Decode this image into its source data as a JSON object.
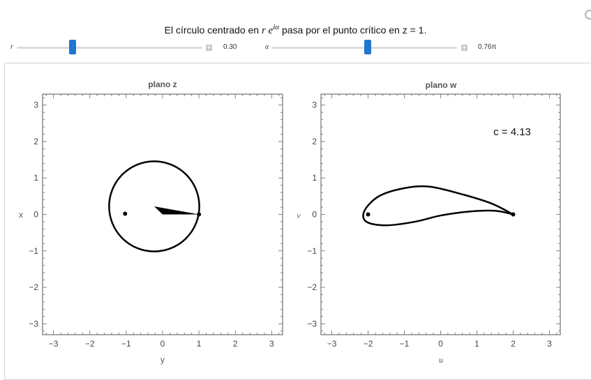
{
  "caption": {
    "prefix": "El círculo centrado en",
    "expr_base": "r e",
    "expr_exp": "iα",
    "suffix": "pasa por el punto crítico en z = 1."
  },
  "controls": {
    "r": {
      "label": "r",
      "value_text": "0.30",
      "fraction": 0.3
    },
    "alpha": {
      "label": "α",
      "value_text": "0.76π",
      "fraction": 0.52
    }
  },
  "plots": {
    "z": {
      "title": "plano z",
      "xlabel": "y",
      "ylabel": "x",
      "xlim": [
        -3.3,
        3.3
      ],
      "ylim": [
        -3.3,
        3.3
      ],
      "ticks": [
        -3,
        -2,
        -1,
        0,
        1,
        2,
        3
      ],
      "tick_labels": [
        "−3",
        "−2",
        "−1",
        "0",
        "1",
        "2",
        "3"
      ]
    },
    "w": {
      "title": "plano w",
      "xlabel": "u",
      "ylabel": "v",
      "xlim": [
        -3.3,
        3.3
      ],
      "ylim": [
        -3.3,
        3.3
      ],
      "ticks": [
        -3,
        -2,
        -1,
        0,
        1,
        2,
        3
      ],
      "tick_labels": [
        "−3",
        "−2",
        "−1",
        "0",
        "1",
        "2",
        "3"
      ],
      "annotation": "c = 4.13"
    }
  },
  "chart_data": [
    {
      "type": "line",
      "title": "plano z",
      "xlabel": "y",
      "ylabel": "x",
      "xlim": [
        -3.3,
        3.3
      ],
      "ylim": [
        -3.3,
        3.3
      ],
      "circle": {
        "center": [
          -0.23,
          0.22
        ],
        "radius": 1.24
      },
      "points": [
        [
          -1.03,
          0.02
        ],
        [
          1.0,
          0.0
        ]
      ],
      "wedge": [
        [
          -0.23,
          0.22
        ],
        [
          1.0,
          0.0
        ],
        [
          0.0,
          0.0
        ]
      ]
    },
    {
      "type": "line",
      "title": "plano w",
      "xlabel": "u",
      "ylabel": "v",
      "xlim": [
        -3.3,
        3.3
      ],
      "ylim": [
        -3.3,
        3.3
      ],
      "profile": [
        [
          2.0,
          0.0
        ],
        [
          1.4,
          0.3
        ],
        [
          0.6,
          0.55
        ],
        [
          -0.3,
          0.76
        ],
        [
          -1.0,
          0.72
        ],
        [
          -1.7,
          0.5
        ],
        [
          -2.1,
          0.1
        ],
        [
          -2.05,
          -0.2
        ],
        [
          -1.5,
          -0.3
        ],
        [
          -0.7,
          -0.2
        ],
        [
          0.0,
          -0.03
        ],
        [
          0.8,
          0.08
        ],
        [
          1.5,
          0.1
        ],
        [
          2.0,
          0.0
        ]
      ],
      "points": [
        [
          -2.0,
          0.0
        ],
        [
          2.0,
          0.0
        ]
      ],
      "annotation": "c = 4.13"
    }
  ]
}
